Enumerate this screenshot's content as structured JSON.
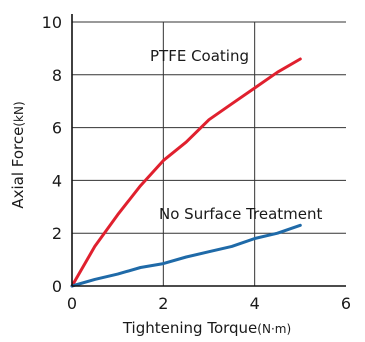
{
  "chart_data": {
    "type": "line",
    "xlabel": "Tightening Torque",
    "xunit": "(N·m)",
    "ylabel": "Axial Force",
    "yunit": "(kN)",
    "xlim": [
      0,
      6
    ],
    "ylim": [
      0,
      10
    ],
    "xticks": [
      "0",
      "2",
      "4",
      "6"
    ],
    "yticks": [
      "0",
      "2",
      "4",
      "6",
      "8",
      "10"
    ],
    "grid": true,
    "series": [
      {
        "name": "PTFE Coating",
        "color": "#e0202e",
        "x": [
          0,
          0.5,
          1.0,
          1.5,
          2.0,
          2.5,
          3.0,
          3.5,
          4.0,
          4.5,
          5.0
        ],
        "y": [
          0,
          1.5,
          2.7,
          3.8,
          4.75,
          5.45,
          6.3,
          6.9,
          7.5,
          8.1,
          8.6
        ]
      },
      {
        "name": "No Surface Treatment",
        "color": "#1f6aa8",
        "x": [
          0,
          0.5,
          1.0,
          1.5,
          2.0,
          2.5,
          3.0,
          3.5,
          4.0,
          4.5,
          5.0
        ],
        "y": [
          0,
          0.25,
          0.45,
          0.7,
          0.85,
          1.1,
          1.3,
          1.5,
          1.8,
          2.0,
          2.3
        ]
      }
    ]
  }
}
